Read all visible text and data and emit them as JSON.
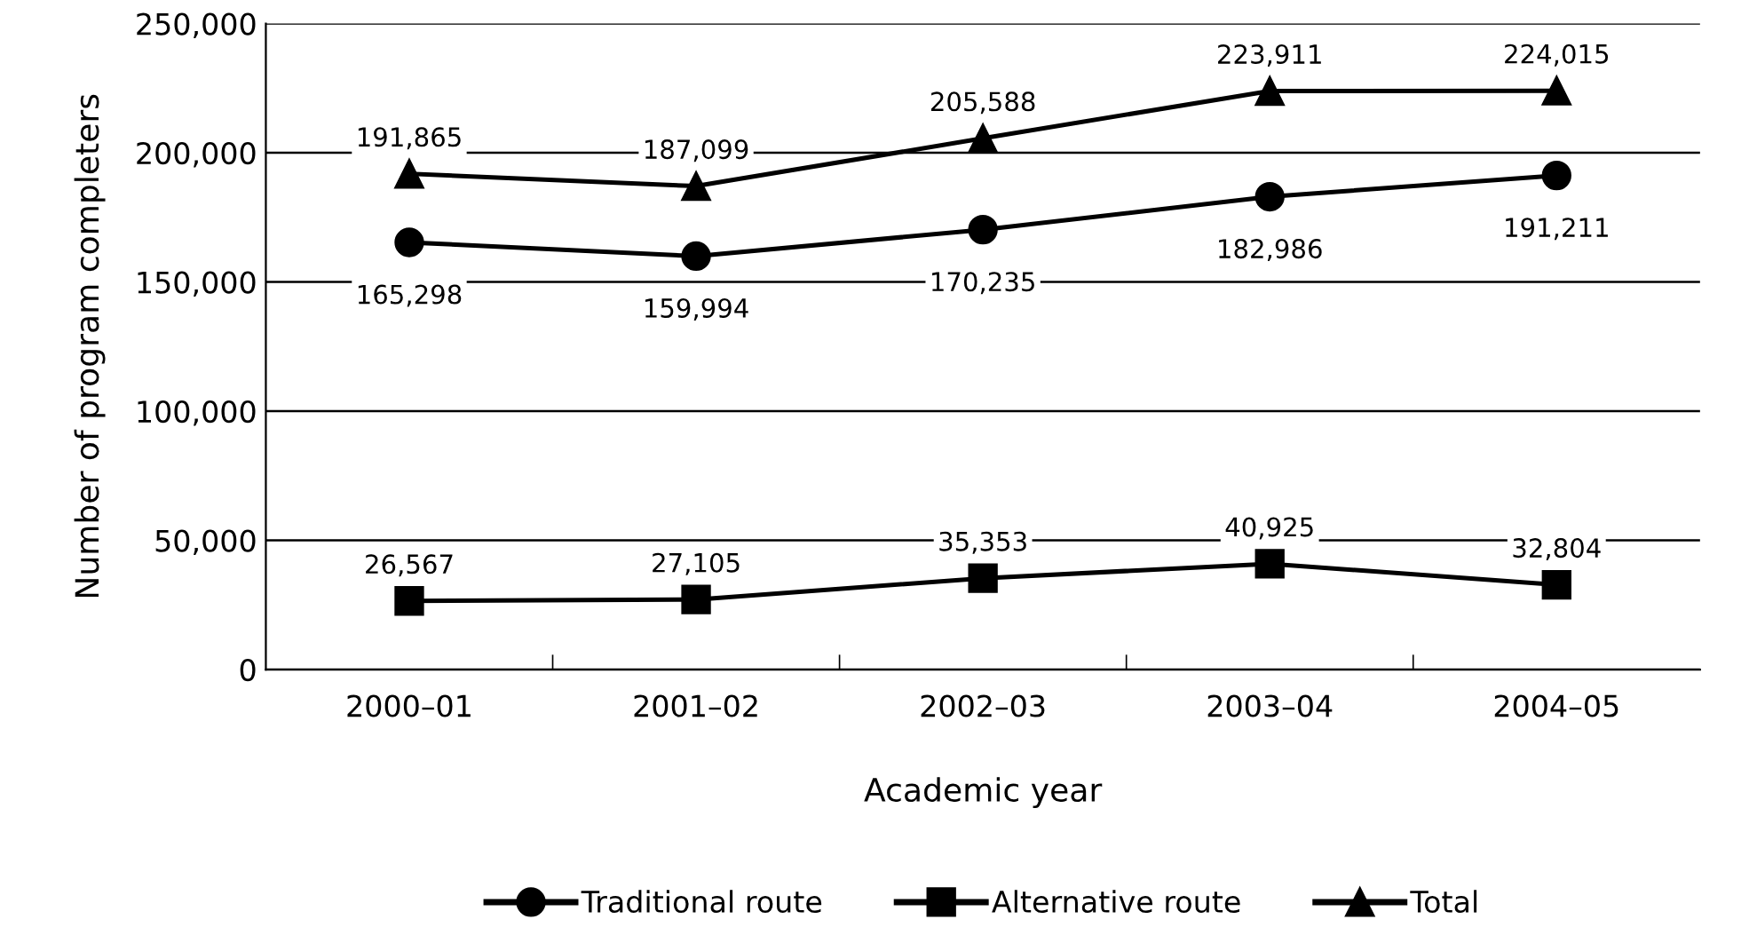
{
  "chart_data": {
    "type": "line",
    "xlabel": "Academic year",
    "ylabel": "Number of program completers",
    "categories": [
      "2000–01",
      "2001–02",
      "2002–03",
      "2003–04",
      "2004–05"
    ],
    "series": [
      {
        "name": "Traditional route",
        "color": "#000000",
        "marker": "circle",
        "values": [
          165298,
          159994,
          170235,
          182986,
          191211
        ],
        "value_labels": [
          "165,298",
          "159,994",
          "170,235",
          "182,986",
          "191,211"
        ]
      },
      {
        "name": "Alternative route",
        "color": "#000000",
        "marker": "square",
        "values": [
          26567,
          27105,
          35353,
          40925,
          32804
        ],
        "value_labels": [
          "26,567",
          "27,105",
          "35,353",
          "40,925",
          "32,804"
        ]
      },
      {
        "name": "Total",
        "color": "#000000",
        "marker": "triangle",
        "values": [
          191865,
          187099,
          205588,
          223911,
          224015
        ],
        "value_labels": [
          "191,865",
          "187,099",
          "205,588",
          "223,911",
          "224,015"
        ]
      }
    ],
    "ylim": [
      0,
      250000
    ],
    "yticks": [
      0,
      {
        "value": 50000,
        "label": "50,000"
      },
      {
        "value": 100000,
        "label": "100,000"
      },
      {
        "value": 150000,
        "label": "150,000"
      },
      {
        "value": 200000,
        "label": "200,000"
      },
      {
        "value": 250000,
        "label": "250,000"
      }
    ],
    "grid": "y",
    "legend": "bottom",
    "line_style": "solid"
  }
}
